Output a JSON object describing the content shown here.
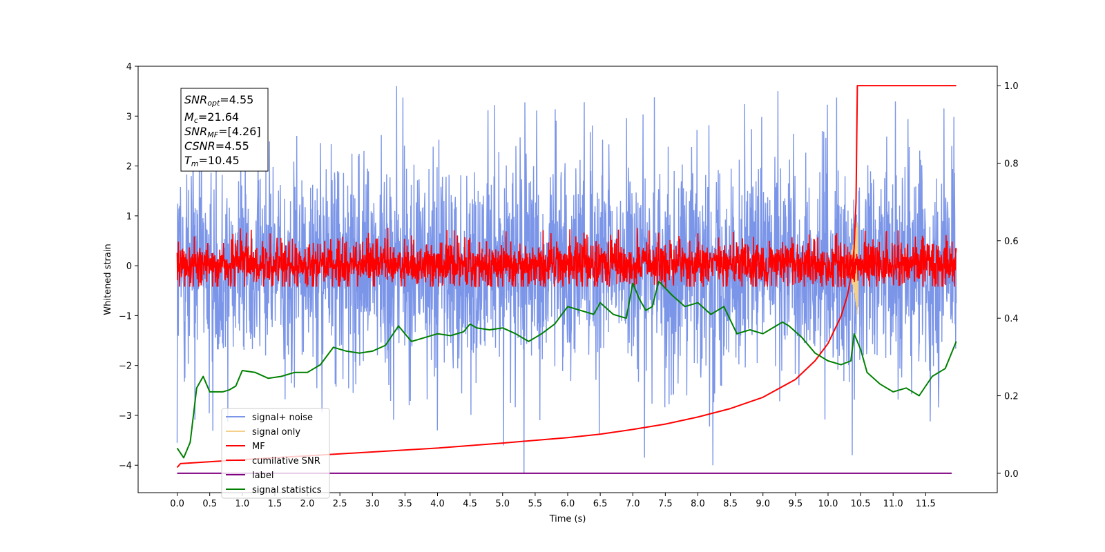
{
  "chart_data": {
    "type": "line",
    "xlabel": "Time (s)",
    "ylabel": "Whitened strain",
    "xlim": [
      -0.6,
      12.6
    ],
    "ylim": [
      -4.55,
      4.0
    ],
    "y2lim": [
      -0.05,
      1.05
    ],
    "x_ticks": [
      "0.0",
      "0.5",
      "1.0",
      "1.5",
      "2.0",
      "2.5",
      "3.0",
      "3.5",
      "4.0",
      "4.5",
      "5.0",
      "5.5",
      "6.0",
      "6.5",
      "7.0",
      "7.5",
      "8.0",
      "8.5",
      "9.0",
      "9.5",
      "10.0",
      "10.5",
      "11.0",
      "11.5"
    ],
    "y_ticks": [
      "4",
      "3",
      "2",
      "1",
      "0",
      "−1",
      "−2",
      "−3",
      "−4"
    ],
    "y2_ticks": [
      "1.0",
      "0.8",
      "0.6",
      "0.4",
      "0.2",
      "0.0"
    ],
    "info_box": {
      "snr_opt": {
        "main": "SNR",
        "sub": "opt",
        "value": "=4.55"
      },
      "mc": {
        "main": "M",
        "sub": "c",
        "value": "=21.64"
      },
      "snr_mf": {
        "main": "SNR",
        "sub": "MF",
        "value": "=[4.26]"
      },
      "csnr": {
        "main": "CSNR",
        "value": "=4.55"
      },
      "tm": {
        "main": "T",
        "sub": "m",
        "value": "=10.45"
      }
    },
    "legend": {
      "placement": "lower-left",
      "entries": [
        {
          "label": "signal+ noise",
          "color": "#7b95e8"
        },
        {
          "label": "signal only",
          "color": "#f5d08a"
        },
        {
          "label": "MF",
          "color": "#ff0000"
        },
        {
          "label": "cumilative SNR",
          "color": "#ff0000"
        },
        {
          "label": "label",
          "color": "#800080"
        },
        {
          "label": "signal statistics",
          "color": "#008000"
        }
      ]
    },
    "series": [
      {
        "name": "signal+ noise",
        "axis": "left",
        "color": "#7b95e8",
        "kind": "noise",
        "x_range": [
          0.0,
          11.97
        ],
        "typical_range": [
          -1.9,
          1.9
        ],
        "max_peak": 3.6,
        "min_peak": -4.15,
        "notable_peaks": [
          [
            5.33,
            -4.15
          ],
          [
            3.37,
            3.6
          ],
          [
            9.23,
            3.5
          ],
          [
            0.0,
            -3.55
          ],
          [
            10.37,
            -3.8
          ],
          [
            7.18,
            -3.85
          ],
          [
            8.23,
            -4.0
          ]
        ]
      },
      {
        "name": "signal only",
        "axis": "left",
        "color": "#f5d08a",
        "kind": "chirp",
        "x_range": [
          10.28,
          10.46
        ],
        "peak": 1.05,
        "trough": -0.95
      },
      {
        "name": "MF",
        "axis": "left",
        "color": "#ff0000",
        "kind": "noise",
        "x_range": [
          0.0,
          11.97
        ],
        "typical_range": [
          -0.38,
          0.45
        ],
        "max_peak": 0.95,
        "min_peak": -0.42
      },
      {
        "name": "cumilative SNR",
        "axis": "right",
        "color": "#ff0000",
        "x": [
          0.0,
          0.05,
          1.0,
          2.0,
          3.0,
          4.0,
          5.0,
          6.0,
          6.5,
          7.0,
          7.5,
          8.0,
          8.5,
          9.0,
          9.5,
          9.8,
          10.0,
          10.2,
          10.3,
          10.35,
          10.4,
          10.43,
          10.45,
          10.5,
          11.97
        ],
        "y": [
          0.015,
          0.025,
          0.035,
          0.045,
          0.055,
          0.065,
          0.078,
          0.092,
          0.101,
          0.113,
          0.127,
          0.145,
          0.167,
          0.196,
          0.242,
          0.29,
          0.335,
          0.405,
          0.46,
          0.505,
          0.58,
          0.7,
          1.0,
          1.0,
          1.0
        ]
      },
      {
        "name": "label",
        "axis": "right",
        "color": "#800080",
        "x": [
          0.0,
          11.9
        ],
        "y": [
          0.0,
          0.0
        ]
      },
      {
        "name": "signal statistics",
        "axis": "right",
        "color": "#008000",
        "x": [
          0.0,
          0.1,
          0.2,
          0.3,
          0.4,
          0.5,
          0.6,
          0.7,
          0.8,
          0.9,
          1.0,
          1.2,
          1.4,
          1.6,
          1.8,
          2.0,
          2.2,
          2.4,
          2.6,
          2.8,
          3.0,
          3.2,
          3.4,
          3.5,
          3.6,
          3.8,
          4.0,
          4.2,
          4.4,
          4.5,
          4.6,
          4.8,
          5.0,
          5.2,
          5.4,
          5.6,
          5.8,
          6.0,
          6.2,
          6.4,
          6.5,
          6.7,
          6.9,
          7.0,
          7.1,
          7.2,
          7.3,
          7.4,
          7.6,
          7.8,
          8.0,
          8.2,
          8.4,
          8.6,
          8.8,
          9.0,
          9.2,
          9.3,
          9.4,
          9.6,
          9.8,
          10.0,
          10.2,
          10.35,
          10.4,
          10.5,
          10.6,
          10.8,
          11.0,
          11.2,
          11.4,
          11.6,
          11.8,
          11.97
        ],
        "y": [
          0.065,
          0.04,
          0.08,
          0.22,
          0.25,
          0.21,
          0.21,
          0.21,
          0.215,
          0.225,
          0.265,
          0.26,
          0.245,
          0.25,
          0.26,
          0.26,
          0.28,
          0.325,
          0.315,
          0.31,
          0.315,
          0.33,
          0.38,
          0.36,
          0.34,
          0.35,
          0.36,
          0.355,
          0.365,
          0.385,
          0.375,
          0.37,
          0.375,
          0.36,
          0.34,
          0.36,
          0.385,
          0.43,
          0.42,
          0.41,
          0.44,
          0.41,
          0.4,
          0.49,
          0.45,
          0.42,
          0.43,
          0.495,
          0.46,
          0.43,
          0.44,
          0.41,
          0.43,
          0.36,
          0.37,
          0.36,
          0.38,
          0.39,
          0.38,
          0.35,
          0.31,
          0.29,
          0.28,
          0.29,
          0.36,
          0.32,
          0.26,
          0.23,
          0.21,
          0.22,
          0.2,
          0.25,
          0.27,
          0.34
        ]
      }
    ]
  }
}
